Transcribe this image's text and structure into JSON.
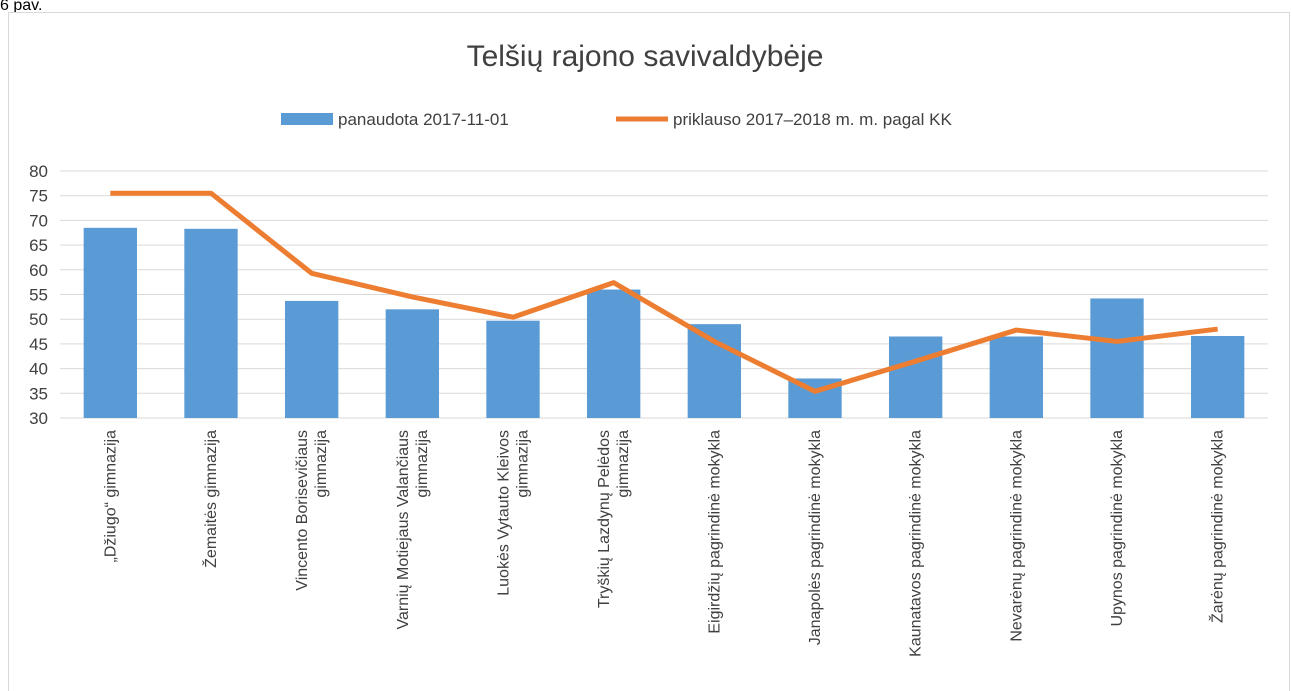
{
  "caption": "6 pav.",
  "chart_data": {
    "type": "bar-line",
    "title": "Telšių rajono savivaldybėje",
    "categories": [
      "„Džiugo“ gimnazija",
      "Žemaitės gimnazija",
      "Vincento Borisevičiaus gimnazija",
      "Varnių Motiejaus Valančiaus gimnazija",
      "Luokės Vytauto Kleivos gimnazija",
      "Tryškių Lazdynų Pelėdos gimnazija",
      "Eigirdžių pagrindinė mokykla",
      "Janapolės pagrindinė mokykla",
      "Kaunatavos pagrindinė mokykla",
      "Nevarėnų pagrindinė mokykla",
      "Upynos pagrindinė mokykla",
      "Žarėnų pagrindinė mokykla"
    ],
    "series": [
      {
        "name": "panaudota 2017-11-01",
        "kind": "bar",
        "color": "#5b9bd5",
        "values": [
          68.5,
          68.3,
          53.7,
          52,
          49.7,
          56,
          49,
          38,
          46.5,
          46.5,
          54.2,
          46.6
        ]
      },
      {
        "name": "priklauso 2017–2018 m. m. pagal KK",
        "kind": "line",
        "color": "#ed7d31",
        "values": [
          75.5,
          75.5,
          59.3,
          54.5,
          50.4,
          57.4,
          45.5,
          35.4,
          41.5,
          47.8,
          45.5,
          48
        ]
      }
    ],
    "ylim": [
      30,
      80
    ],
    "yticks": [
      30,
      35,
      40,
      45,
      50,
      55,
      60,
      65,
      70,
      75,
      80
    ],
    "grid": true,
    "legend": "top"
  }
}
